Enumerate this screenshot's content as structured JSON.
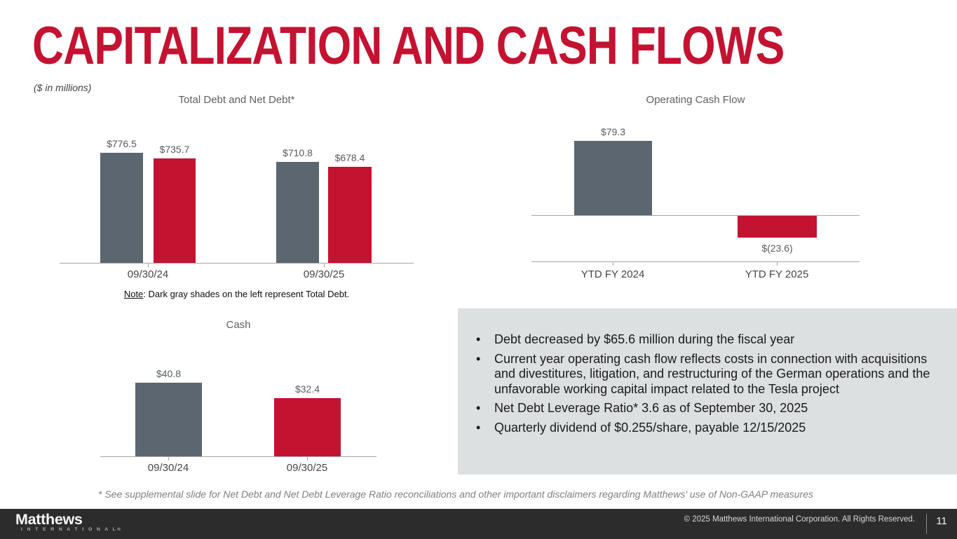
{
  "slide": {
    "title": "CAPITALIZATION AND CASH FLOWS",
    "units_note": "($ in millions)",
    "footnote": "* See supplemental slide for Net Debt and Net Debt Leverage Ratio reconciliations and other important disclaimers regarding Matthews' use of Non-GAAP measures"
  },
  "colors": {
    "brand_red": "#C41231",
    "slate_gray": "#5B6670",
    "bullet_box_bg": "#DDE0E1",
    "footer_bg": "#2C2C2C",
    "axis_gray": "#a6a6a6"
  },
  "chart_data": [
    {
      "type": "bar",
      "title": "Total Debt and Net Debt*",
      "categories": [
        "09/30/24",
        "09/30/25"
      ],
      "series": [
        {
          "name": "Total Debt",
          "color": "#5B6670",
          "values": [
            776.5,
            710.8
          ],
          "labels": [
            "$776.5",
            "$710.8"
          ]
        },
        {
          "name": "Net Debt",
          "color": "#C41231",
          "values": [
            735.7,
            678.4
          ],
          "labels": [
            "$735.7",
            "$678.4"
          ]
        }
      ],
      "ylim": [
        0,
        860
      ],
      "grid": false,
      "legend": "none",
      "note_label": "Note",
      "note_text": ": Dark gray shades on the left represent Total Debt."
    },
    {
      "type": "bar",
      "title": "Operating Cash Flow",
      "categories": [
        "YTD FY 2024",
        "YTD FY 2025"
      ],
      "series": [
        {
          "name": "Operating Cash Flow",
          "values": [
            79.3,
            -23.6
          ],
          "labels": [
            "$79.3",
            "$(23.6)"
          ],
          "colors": [
            "#5B6670",
            "#C41231"
          ]
        }
      ],
      "ylim": [
        -45,
        110
      ],
      "grid": false,
      "legend": "none"
    },
    {
      "type": "bar",
      "title": "Cash",
      "categories": [
        "09/30/24",
        "09/30/25"
      ],
      "series": [
        {
          "name": "Cash",
          "values": [
            40.8,
            32.4
          ],
          "labels": [
            "$40.8",
            "$32.4"
          ],
          "colors": [
            "#5B6670",
            "#C41231"
          ]
        }
      ],
      "ylim": [
        0,
        70
      ],
      "grid": false,
      "legend": "none"
    }
  ],
  "bullets": {
    "items": [
      "Debt decreased by $65.6 million during the fiscal year",
      "Current year operating cash flow reflects costs in connection with acquisitions and divestitures, litigation, and restructuring of the German operations and the unfavorable working capital impact related to the Tesla project",
      "Net Debt Leverage Ratio* 3.6 as of September 30, 2025",
      "Quarterly dividend of $0.255/share, payable 12/15/2025"
    ]
  },
  "footer": {
    "logo_primary": "Matthews",
    "logo_secondary": "I N T E R N A T I O N A L®",
    "copyright": "© 2025 Matthews International Corporation. All Rights Reserved.",
    "page_number": "11"
  }
}
